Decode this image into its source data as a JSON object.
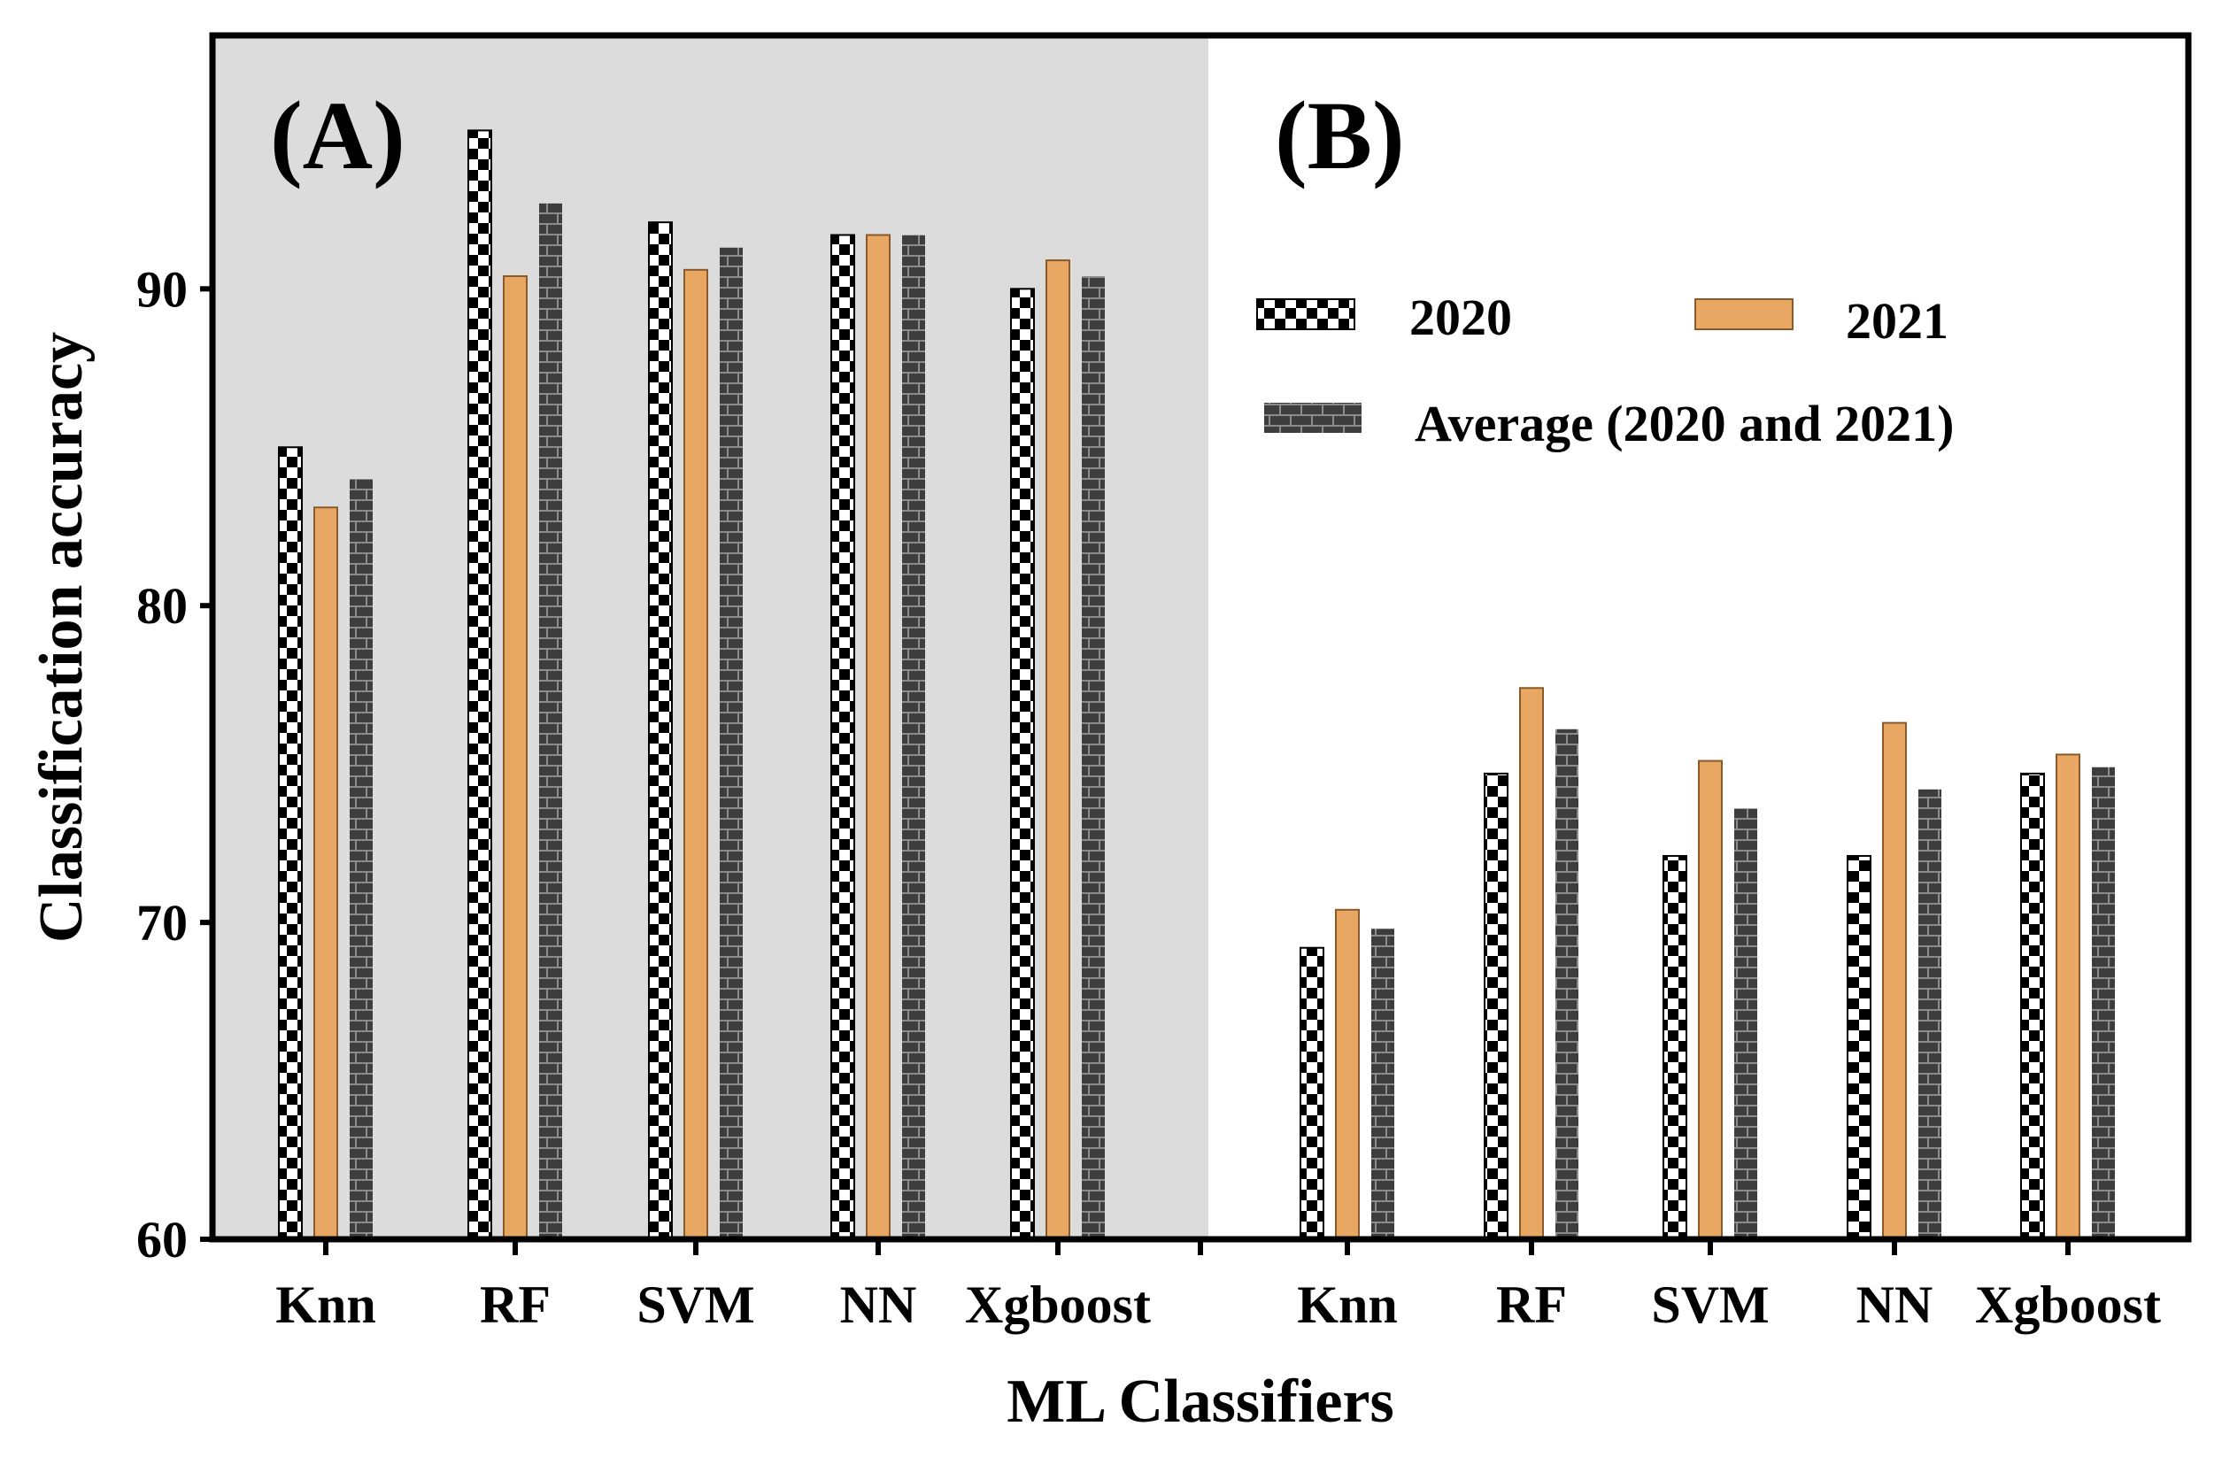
{
  "chart_data": {
    "type": "bar",
    "ylabel": "Classification accuracy",
    "xlabel": "ML Classifiers",
    "ylim": [
      60,
      98
    ],
    "yticks": [
      "60",
      "70",
      "80",
      "90"
    ],
    "yticks_values": [
      60,
      70,
      80,
      90
    ],
    "panels": [
      {
        "label": "(A)",
        "shaded": true,
        "categories": [
          "Knn",
          "RF",
          "SVM",
          "NN",
          "Xgboost"
        ],
        "series": [
          {
            "name": "2020",
            "values": [
              85.0,
              95.0,
              92.1,
              91.7,
              90.0
            ]
          },
          {
            "name": "2021",
            "values": [
              83.1,
              90.4,
              90.6,
              91.7,
              90.9
            ]
          },
          {
            "name": "Average (2020 and 2021)",
            "values": [
              84.0,
              92.7,
              91.3,
              91.7,
              90.4
            ]
          }
        ]
      },
      {
        "label": "(B)",
        "shaded": false,
        "categories": [
          "Knn",
          "RF",
          "SVM",
          "NN",
          "Xgboost"
        ],
        "series": [
          {
            "name": "2020",
            "values": [
              69.2,
              74.7,
              72.1,
              72.1,
              74.7
            ]
          },
          {
            "name": "2021",
            "values": [
              70.4,
              77.4,
              75.1,
              76.3,
              75.3
            ]
          },
          {
            "name": "Average (2020 and 2021)",
            "values": [
              69.8,
              76.1,
              73.6,
              74.2,
              74.9
            ]
          }
        ]
      }
    ],
    "legend": {
      "position": "top-right",
      "items": [
        "2020",
        "2021",
        "Average (2020 and 2021)"
      ]
    },
    "colors": {
      "series_2021": "#E8A863",
      "series_2021_edge": "#8a5a2b",
      "panel_a_bg": "#dcdcdc",
      "average_fill": "#3d3d3d",
      "average_brick": "#8c8c8c"
    }
  }
}
